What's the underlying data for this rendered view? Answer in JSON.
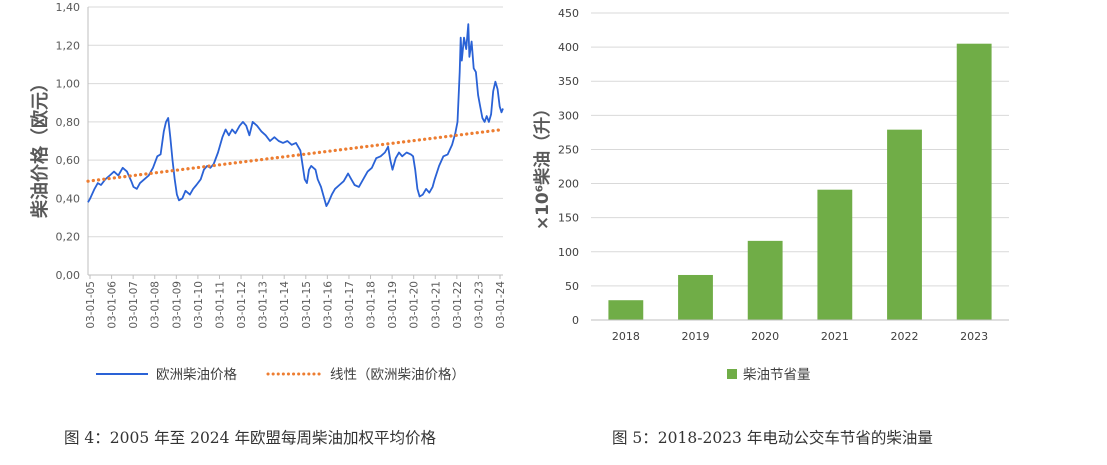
{
  "chart_data": [
    {
      "type": "line",
      "ylabel": "柴油价格（欧元）",
      "ylim": [
        0,
        1.4
      ],
      "yticks": [
        "0,00",
        "0,20",
        "0,40",
        "0,60",
        "0,80",
        "1,00",
        "1,20",
        "1,40"
      ],
      "xticks": [
        "03-01-05",
        "03-01-06",
        "03-01-07",
        "03-01-08",
        "03-01-09",
        "03-01-10",
        "03-01-11",
        "03-01-12",
        "03-01-13",
        "03-01-14",
        "03-01-15",
        "03-01-16",
        "03-01-17",
        "03-01-18",
        "03-01-19",
        "03-01-20",
        "03-01-21",
        "03-01-22",
        "03-01-23",
        "03-01-24"
      ],
      "grid": true,
      "legend_position": "bottom",
      "series": [
        {
          "name": "欧洲柴油价格",
          "color": "#2a62d6",
          "style": "solid",
          "points": [
            [
              2005.0,
              0.38
            ],
            [
              2005.1,
              0.4
            ],
            [
              2005.3,
              0.45
            ],
            [
              2005.45,
              0.48
            ],
            [
              2005.6,
              0.47
            ],
            [
              2005.8,
              0.5
            ],
            [
              2006.0,
              0.52
            ],
            [
              2006.2,
              0.54
            ],
            [
              2006.4,
              0.52
            ],
            [
              2006.6,
              0.56
            ],
            [
              2006.8,
              0.54
            ],
            [
              2007.0,
              0.49
            ],
            [
              2007.1,
              0.46
            ],
            [
              2007.25,
              0.45
            ],
            [
              2007.4,
              0.48
            ],
            [
              2007.6,
              0.5
            ],
            [
              2007.8,
              0.52
            ],
            [
              2008.0,
              0.56
            ],
            [
              2008.2,
              0.62
            ],
            [
              2008.35,
              0.63
            ],
            [
              2008.5,
              0.75
            ],
            [
              2008.6,
              0.8
            ],
            [
              2008.7,
              0.82
            ],
            [
              2008.8,
              0.72
            ],
            [
              2008.9,
              0.6
            ],
            [
              2009.0,
              0.5
            ],
            [
              2009.1,
              0.42
            ],
            [
              2009.2,
              0.39
            ],
            [
              2009.35,
              0.4
            ],
            [
              2009.5,
              0.44
            ],
            [
              2009.7,
              0.42
            ],
            [
              2009.85,
              0.45
            ],
            [
              2010.0,
              0.47
            ],
            [
              2010.2,
              0.5
            ],
            [
              2010.35,
              0.55
            ],
            [
              2010.5,
              0.57
            ],
            [
              2010.65,
              0.56
            ],
            [
              2010.8,
              0.58
            ],
            [
              2011.0,
              0.64
            ],
            [
              2011.2,
              0.72
            ],
            [
              2011.35,
              0.76
            ],
            [
              2011.5,
              0.73
            ],
            [
              2011.65,
              0.76
            ],
            [
              2011.8,
              0.74
            ],
            [
              2012.0,
              0.78
            ],
            [
              2012.15,
              0.8
            ],
            [
              2012.3,
              0.78
            ],
            [
              2012.45,
              0.73
            ],
            [
              2012.6,
              0.8
            ],
            [
              2012.8,
              0.78
            ],
            [
              2013.0,
              0.75
            ],
            [
              2013.2,
              0.73
            ],
            [
              2013.4,
              0.7
            ],
            [
              2013.6,
              0.72
            ],
            [
              2013.8,
              0.7
            ],
            [
              2014.0,
              0.69
            ],
            [
              2014.2,
              0.7
            ],
            [
              2014.4,
              0.68
            ],
            [
              2014.6,
              0.69
            ],
            [
              2014.8,
              0.65
            ],
            [
              2015.0,
              0.5
            ],
            [
              2015.1,
              0.48
            ],
            [
              2015.2,
              0.55
            ],
            [
              2015.3,
              0.57
            ],
            [
              2015.5,
              0.55
            ],
            [
              2015.6,
              0.5
            ],
            [
              2015.75,
              0.46
            ],
            [
              2015.9,
              0.4
            ],
            [
              2016.0,
              0.36
            ],
            [
              2016.1,
              0.38
            ],
            [
              2016.25,
              0.42
            ],
            [
              2016.4,
              0.45
            ],
            [
              2016.6,
              0.47
            ],
            [
              2016.8,
              0.49
            ],
            [
              2017.0,
              0.53
            ],
            [
              2017.15,
              0.5
            ],
            [
              2017.3,
              0.47
            ],
            [
              2017.5,
              0.46
            ],
            [
              2017.7,
              0.5
            ],
            [
              2017.9,
              0.54
            ],
            [
              2018.1,
              0.56
            ],
            [
              2018.3,
              0.61
            ],
            [
              2018.5,
              0.62
            ],
            [
              2018.7,
              0.64
            ],
            [
              2018.85,
              0.67
            ],
            [
              2018.95,
              0.6
            ],
            [
              2019.05,
              0.55
            ],
            [
              2019.2,
              0.61
            ],
            [
              2019.35,
              0.64
            ],
            [
              2019.5,
              0.62
            ],
            [
              2019.7,
              0.64
            ],
            [
              2019.9,
              0.63
            ],
            [
              2020.0,
              0.62
            ],
            [
              2020.1,
              0.55
            ],
            [
              2020.2,
              0.45
            ],
            [
              2020.3,
              0.41
            ],
            [
              2020.45,
              0.42
            ],
            [
              2020.6,
              0.45
            ],
            [
              2020.75,
              0.43
            ],
            [
              2020.9,
              0.46
            ],
            [
              2021.0,
              0.5
            ],
            [
              2021.2,
              0.57
            ],
            [
              2021.4,
              0.62
            ],
            [
              2021.6,
              0.63
            ],
            [
              2021.8,
              0.68
            ],
            [
              2021.95,
              0.74
            ],
            [
              2022.05,
              0.8
            ],
            [
              2022.15,
              1.06
            ],
            [
              2022.2,
              1.24
            ],
            [
              2022.25,
              1.12
            ],
            [
              2022.35,
              1.24
            ],
            [
              2022.45,
              1.18
            ],
            [
              2022.55,
              1.31
            ],
            [
              2022.6,
              1.14
            ],
            [
              2022.7,
              1.22
            ],
            [
              2022.8,
              1.08
            ],
            [
              2022.9,
              1.06
            ],
            [
              2023.0,
              0.94
            ],
            [
              2023.1,
              0.88
            ],
            [
              2023.2,
              0.82
            ],
            [
              2023.3,
              0.8
            ],
            [
              2023.4,
              0.83
            ],
            [
              2023.5,
              0.8
            ],
            [
              2023.6,
              0.84
            ],
            [
              2023.7,
              0.96
            ],
            [
              2023.8,
              1.01
            ],
            [
              2023.9,
              0.97
            ],
            [
              2024.0,
              0.88
            ],
            [
              2024.08,
              0.85
            ],
            [
              2024.15,
              0.87
            ]
          ]
        },
        {
          "name": "线性（欧洲柴油价格）",
          "color": "#ed7d31",
          "style": "dotted",
          "points": [
            [
              2005.0,
              0.49
            ],
            [
              2024.15,
              0.76
            ]
          ]
        }
      ]
    },
    {
      "type": "bar",
      "categories": [
        "2018",
        "2019",
        "2020",
        "2021",
        "2022",
        "2023"
      ],
      "values": [
        29,
        66,
        116,
        191,
        279,
        405
      ],
      "ylabel": "×10⁶柴油（升）",
      "ylim": [
        0,
        450
      ],
      "yticks": [
        "0",
        "50",
        "100",
        "150",
        "200",
        "250",
        "300",
        "350",
        "400",
        "450"
      ],
      "grid": true,
      "legend_position": "bottom",
      "series": [
        {
          "name": "柴油节省量",
          "color": "#70ad47"
        }
      ]
    }
  ],
  "captions": {
    "left": "图 4：2005 年至 2024 年欧盟每周柴油加权平均价格",
    "right": "图 5：2018-2023 年电动公交车节省的柴油量"
  }
}
